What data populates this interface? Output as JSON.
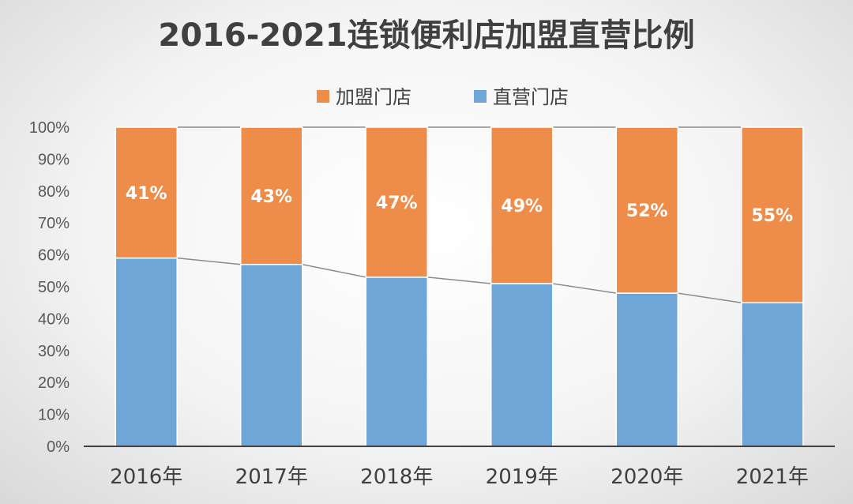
{
  "chart_data": {
    "type": "bar",
    "stacked": true,
    "title": "2016-2021连锁便利店加盟直营比例",
    "categories": [
      "2016年",
      "2017年",
      "2018年",
      "2019年",
      "2020年",
      "2021年"
    ],
    "series": [
      {
        "name": "直营门店",
        "values": [
          59,
          57,
          53,
          51,
          48,
          45
        ],
        "color": "#6fa6d8"
      },
      {
        "name": "加盟门店",
        "values": [
          41,
          43,
          47,
          49,
          52,
          55
        ],
        "color": "#ee8c4a"
      }
    ],
    "data_labels": {
      "series": "加盟门店",
      "text": [
        "41%",
        "43%",
        "47%",
        "49%",
        "52%",
        "55%"
      ]
    },
    "legend": {
      "placement": "top",
      "order": [
        "加盟门店",
        "直营门店"
      ]
    },
    "yticks": [
      "0%",
      "10%",
      "20%",
      "30%",
      "40%",
      "50%",
      "60%",
      "70%",
      "80%",
      "90%",
      "100%"
    ],
    "ylim": [
      0,
      100
    ],
    "grid": false,
    "series_lines": true
  }
}
